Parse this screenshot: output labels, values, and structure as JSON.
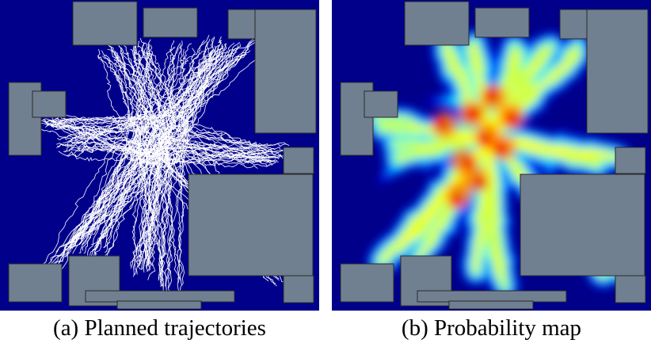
{
  "figure": {
    "panels": [
      {
        "id": "a",
        "caption": "(a) Planned trajectories",
        "content": "trajectories"
      },
      {
        "id": "b",
        "caption": "(b) Probability map",
        "content": "heatmap"
      }
    ],
    "colors": {
      "background": "#00008b",
      "obstacle_fill": "#708090",
      "obstacle_stroke": "#2a2a2a",
      "trajectory": "#ffffff",
      "heat_scale": [
        "#00008b",
        "#0000ff",
        "#00a0ff",
        "#00ffff",
        "#7fff7f",
        "#ffff00",
        "#ff8000",
        "#ff0000",
        "#b00000"
      ]
    }
  }
}
